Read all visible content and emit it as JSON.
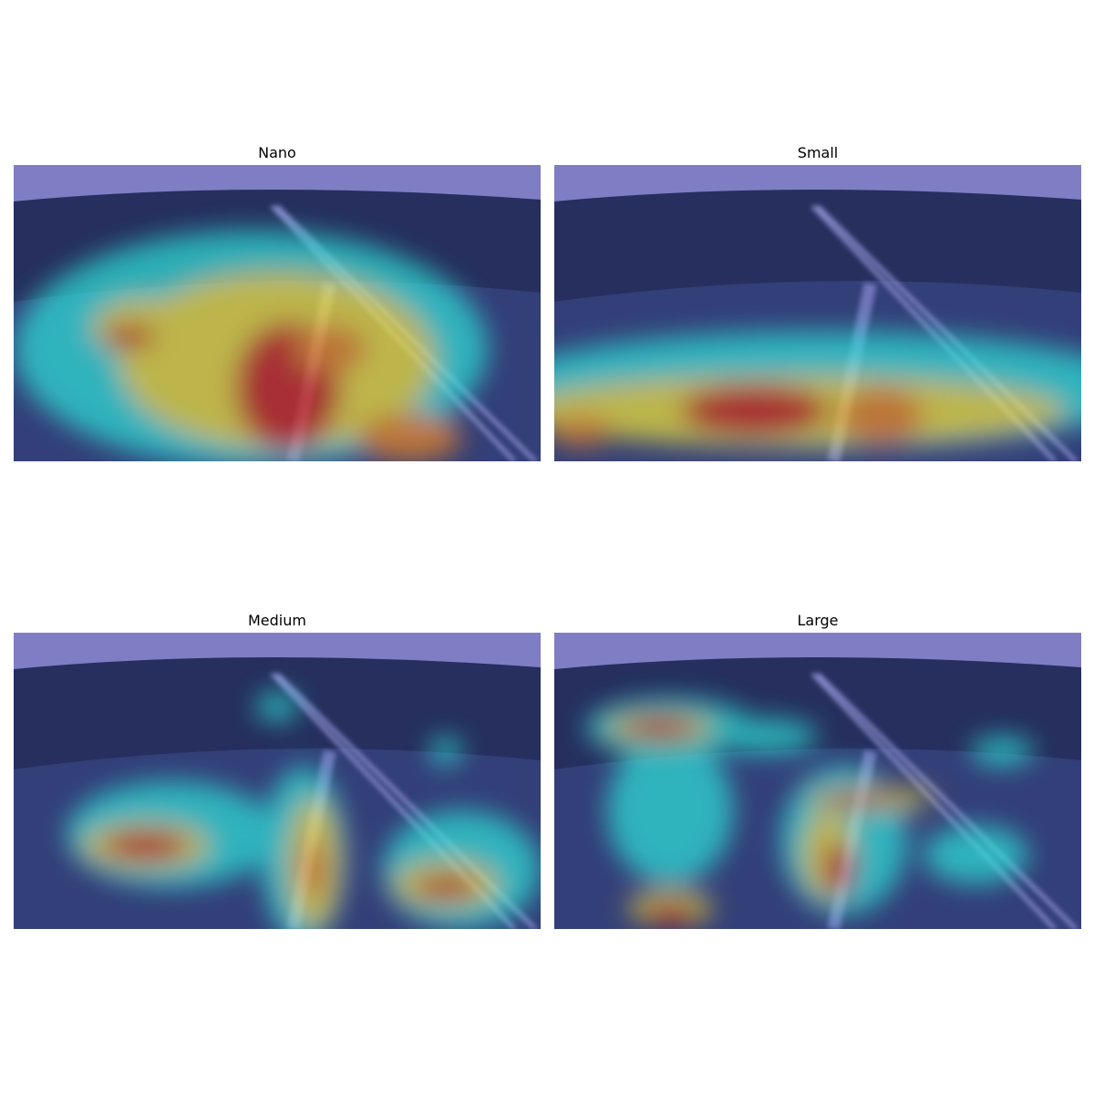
{
  "panels": [
    {
      "title": "Nano"
    },
    {
      "title": "Small"
    },
    {
      "title": "Medium"
    },
    {
      "title": "Large"
    }
  ]
}
